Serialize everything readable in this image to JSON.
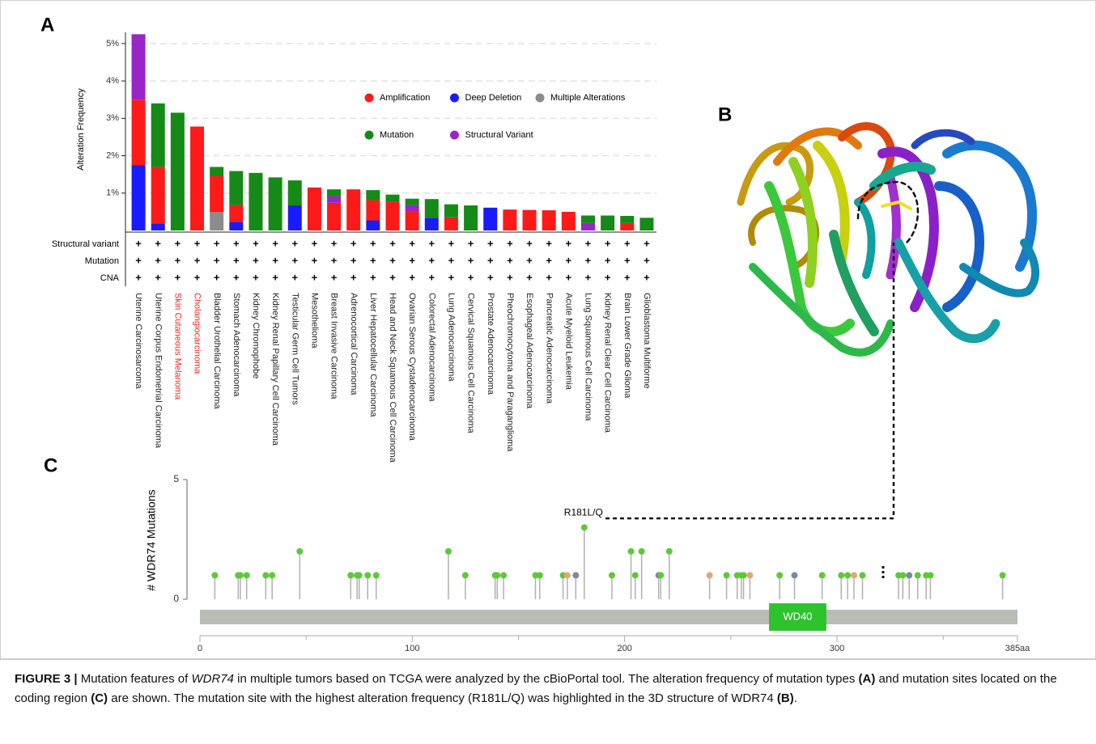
{
  "panel_labels": {
    "a": "A",
    "b": "B",
    "c": "C"
  },
  "chart_data": [
    {
      "type": "bar",
      "stacked": true,
      "y_label": "Alteration Frequency",
      "categories": [
        "Uterine Carcinosarcoma",
        "Uterine Corpus Endometrial Carcinoma",
        "Skin Cutaneous Melanoma",
        "Cholangiocarcinoma",
        "Bladder Urothelial Carcinoma",
        "Stomach Adenocarcinoma",
        "Kidney Chromophobe",
        "Kidney Renal Papillary Cell Carcinoma",
        "Testicular Germ Cell Tumors",
        "Mesothelioma",
        "Breast Invasive Carcinoma",
        "Adrenocortical Carcinoma",
        "Liver Hepatocellular Carcinoma",
        "Head and Neck Squamous Cell Carcinoma",
        "Ovarian Serous Cystadenocarcinoma",
        "Colorectal Adenocarcinoma",
        "Lung Adenocarcinoma",
        "Cervical Squamous Cell Carcinoma",
        "Prostate Adenocarcinoma",
        "Pheochromocytoma and Paraganglioma",
        "Esophageal Adenocarcinoma",
        "Pancreatic Adenocarcinoma",
        "Acute Myeloid Leukemia",
        "Lung Squamous Cell Carcinoma",
        "Kidney Renal Clear Cell Carcinoma",
        "Brain Lower Grade Glioma",
        "Glioblastoma Multiforme"
      ],
      "label_colors": [
        "#222",
        "#222",
        "#e8281e",
        "#e8281e",
        "#222",
        "#222",
        "#222",
        "#222",
        "#222",
        "#222",
        "#222",
        "#222",
        "#222",
        "#222",
        "#222",
        "#222",
        "#222",
        "#222",
        "#222",
        "#222",
        "#222",
        "#222",
        "#222",
        "#222",
        "#222",
        "#222",
        "#222"
      ],
      "series": [
        {
          "name": "Amplification",
          "color": "#ff1a1a",
          "values": [
            1.75,
            1.51,
            null,
            2.78,
            0.97,
            0.45,
            null,
            null,
            null,
            1.15,
            0.74,
            1.1,
            0.54,
            0.77,
            0.51,
            null,
            0.35,
            null,
            null,
            0.56,
            0.55,
            0.54,
            0.5,
            null,
            null,
            0.2,
            null
          ]
        },
        {
          "name": "Deep Deletion",
          "color": "#1a1aff",
          "values": [
            1.75,
            0.19,
            null,
            null,
            null,
            0.23,
            null,
            null,
            0.67,
            null,
            null,
            null,
            0.27,
            null,
            null,
            0.34,
            null,
            null,
            0.61,
            null,
            null,
            null,
            null,
            null,
            null,
            null,
            null
          ]
        },
        {
          "name": "Multiple Alterations",
          "color": "#8c8c8c",
          "values": [
            null,
            null,
            null,
            null,
            0.49,
            null,
            null,
            null,
            null,
            null,
            null,
            null,
            null,
            null,
            null,
            null,
            null,
            null,
            null,
            null,
            null,
            null,
            null,
            null,
            null,
            null,
            null
          ]
        },
        {
          "name": "Mutation",
          "color": "#168a16",
          "values": [
            null,
            1.7,
            3.15,
            null,
            0.24,
            0.91,
            1.54,
            1.42,
            0.67,
            null,
            0.18,
            null,
            0.27,
            0.19,
            0.17,
            0.5,
            0.35,
            0.67,
            null,
            null,
            null,
            null,
            null,
            0.2,
            0.4,
            0.19,
            0.34
          ]
        },
        {
          "name": "Structural Variant",
          "color": "#9a24c8",
          "values": [
            1.75,
            null,
            null,
            null,
            null,
            null,
            null,
            null,
            null,
            null,
            0.18,
            null,
            null,
            null,
            0.17,
            null,
            null,
            null,
            null,
            null,
            null,
            null,
            null,
            0.2,
            null,
            null,
            null
          ]
        }
      ],
      "stack_order": [
        1,
        2,
        0,
        4,
        3
      ],
      "ylim": [
        0,
        5.3
      ],
      "yticks": [
        {
          "value": 1,
          "label": "1%"
        },
        {
          "value": 2,
          "label": "2%"
        },
        {
          "value": 3,
          "label": "3%"
        },
        {
          "value": 4,
          "label": "4%"
        },
        {
          "value": 5,
          "label": "5%"
        }
      ],
      "grid": true,
      "legend_columns": 3,
      "profile_rows": [
        "Structural variant",
        "Mutation",
        "CNA"
      ],
      "profile_mark": "+"
    },
    {
      "type": "lollipop",
      "y_label": "# WDR74 Mutations",
      "x": [
        7,
        18,
        19,
        22,
        31,
        34,
        47,
        71,
        74,
        75,
        79,
        83,
        117,
        125,
        139,
        140,
        143,
        158,
        160,
        171,
        173,
        177,
        181,
        194,
        203,
        205,
        208,
        216,
        217,
        221,
        240,
        248,
        253,
        255,
        256,
        259,
        273,
        280,
        293,
        302,
        305,
        308,
        312,
        329,
        331,
        334,
        338,
        342,
        344,
        378
      ],
      "values": [
        1,
        1,
        1,
        1,
        1,
        1,
        2,
        1,
        1,
        1,
        1,
        1,
        2,
        1,
        1,
        1,
        1,
        1,
        1,
        1,
        1,
        1,
        3,
        1,
        2,
        1,
        2,
        1,
        1,
        2,
        1,
        1,
        1,
        1,
        1,
        1,
        1,
        1,
        1,
        1,
        1,
        1,
        1,
        1,
        1,
        1,
        1,
        1,
        1,
        1
      ],
      "point_colors": [
        "#5ec83a",
        "#5ec83a",
        "#5ec83a",
        "#5ec83a",
        "#5ec83a",
        "#5ec83a",
        "#5ec83a",
        "#5ec83a",
        "#5ec83a",
        "#5ec83a",
        "#5ec83a",
        "#5ec83a",
        "#5ec83a",
        "#5ec83a",
        "#5ec83a",
        "#5ec83a",
        "#5ec83a",
        "#5ec83a",
        "#5ec83a",
        "#5ec83a",
        "#e0a878",
        "#7b8aa0",
        "#5ec83a",
        "#5ec83a",
        "#5ec83a",
        "#5ec83a",
        "#5ec83a",
        "#7b8aa0",
        "#5ec83a",
        "#5ec83a",
        "#e0a878",
        "#5ec83a",
        "#5ec83a",
        "#5ec83a",
        "#5ec83a",
        "#e0a878",
        "#5ec83a",
        "#7b8aa0",
        "#5ec83a",
        "#5ec83a",
        "#5ec83a",
        "#e0a878",
        "#5ec83a",
        "#5ec83a",
        "#5ec83a",
        "#7b8aa0",
        "#5ec83a",
        "#5ec83a",
        "#5ec83a",
        "#5ec83a"
      ],
      "xlim": [
        0,
        385
      ],
      "xticks": [
        0,
        100,
        200,
        300,
        {
          "value": 385,
          "label": "385aa"
        }
      ],
      "minor_xticks": [
        50,
        150,
        250,
        350
      ],
      "ylim": [
        0,
        5
      ],
      "yticks": [
        0,
        5
      ],
      "domains": [
        {
          "name": "WD40",
          "start": 268,
          "end": 295,
          "color": "#2fc22f"
        }
      ],
      "annotations": [
        {
          "text": "R181L/Q",
          "x": 181,
          "y": 3
        }
      ]
    }
  ],
  "caption": {
    "segments": [
      "FIGURE 3 |",
      " Mutation features of ",
      "WDR74",
      " in multiple tumors based on TCGA were analyzed by the cBioPortal tool. The alteration frequency of mutation types ",
      "(A)",
      " and mutation sites located on the coding region ",
      "(C)",
      " are shown. The mutation site with the highest alteration frequency (R181L/Q) was highlighted in the 3D structure of WDR74 ",
      "(B)",
      "."
    ]
  }
}
